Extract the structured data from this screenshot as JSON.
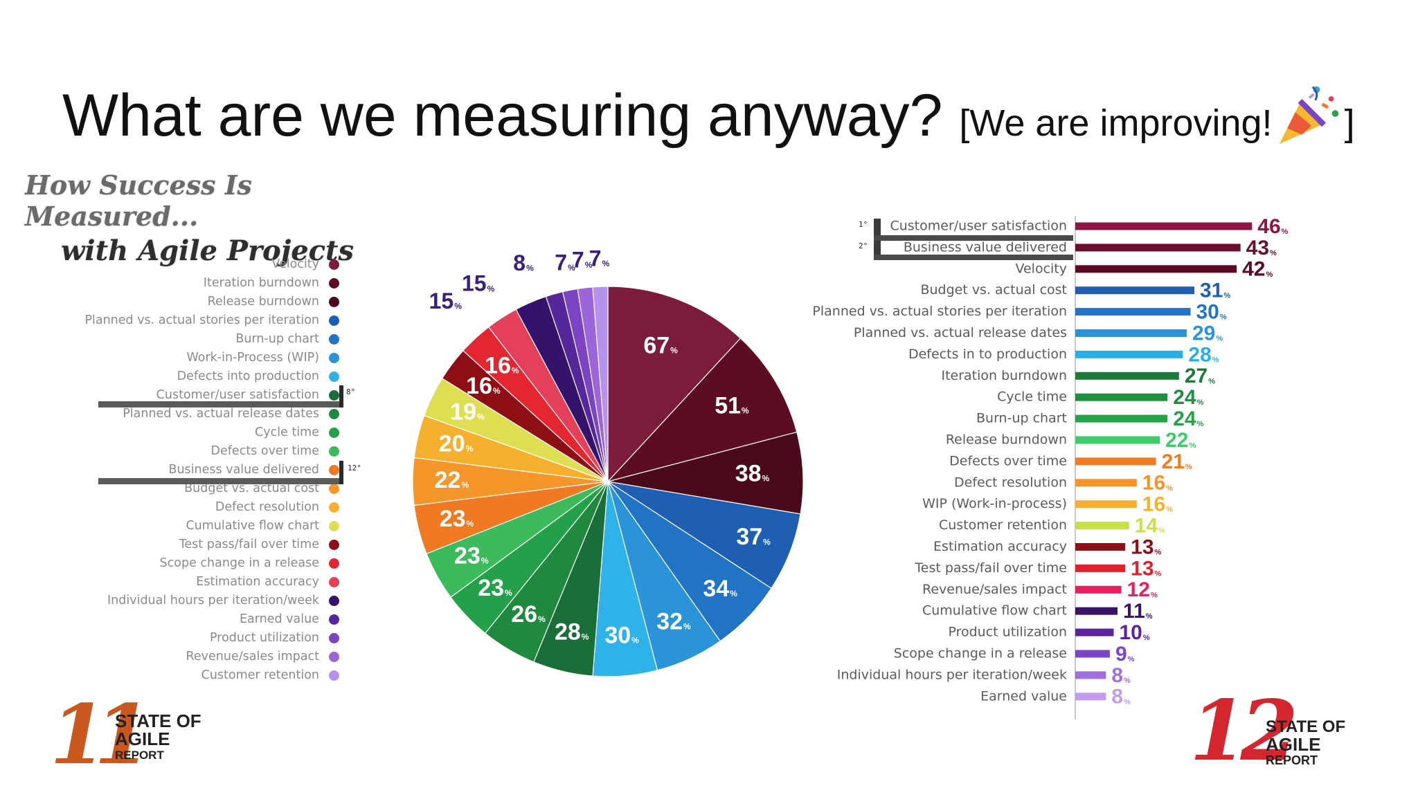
{
  "slide": {
    "title": "What are we measuring anyway?",
    "subtitle_open": "[We are improving!",
    "subtitle_close": "]",
    "emoji": "party-popper-icon"
  },
  "left_panel": {
    "title_line1": "How Success Is Measured...",
    "title_line2": "with Agile Projects",
    "annotation_1": "8°",
    "annotation_2": "12°"
  },
  "right_panel": {
    "rank_1": "1°",
    "rank_2": "2°"
  },
  "logos": {
    "left": {
      "number": "11",
      "line1": "STATE OF",
      "line2": "AGILE",
      "line3": "REPORT"
    },
    "right": {
      "number": "12",
      "line1": "STATE OF",
      "line2": "AGILE",
      "line3": "REPORT"
    }
  },
  "chart_data": [
    {
      "type": "pie",
      "title": "How Success Is Measured... with Agile Projects",
      "legend_placement": "left",
      "unit": "%",
      "slices": [
        {
          "label": "Velocity",
          "value": 67,
          "color": "#7b1c3a"
        },
        {
          "label": "Iteration burndown",
          "value": 51,
          "color": "#5c0d22"
        },
        {
          "label": "Release burndown",
          "value": 38,
          "color": "#4a0a1a"
        },
        {
          "label": "Planned vs. actual stories per iteration",
          "value": 37,
          "color": "#1f5fb3"
        },
        {
          "label": "Burn-up chart",
          "value": 34,
          "color": "#2173c4"
        },
        {
          "label": "Work-in-Process (WIP)",
          "value": 32,
          "color": "#2b94d8"
        },
        {
          "label": "Defects into production",
          "value": 30,
          "color": "#2fb2e8"
        },
        {
          "label": "Customer/user satisfaction",
          "value": 28,
          "color": "#1a6e38"
        },
        {
          "label": "Planned vs. actual release dates",
          "value": 26,
          "color": "#1f8a3d"
        },
        {
          "label": "Cycle time",
          "value": 23,
          "color": "#24a04a"
        },
        {
          "label": "Defects over time",
          "value": 23,
          "color": "#3dbb5c"
        },
        {
          "label": "Business value delivered",
          "value": 23,
          "color": "#f07a22"
        },
        {
          "label": "Budget vs. actual cost",
          "value": 22,
          "color": "#f5962a"
        },
        {
          "label": "Defect resolution",
          "value": 20,
          "color": "#f5b12e"
        },
        {
          "label": "Cumulative flow chart",
          "value": 19,
          "color": "#dede52"
        },
        {
          "label": "Test pass/fail over time",
          "value": 16,
          "color": "#8e0e15"
        },
        {
          "label": "Scope change in a release",
          "value": 16,
          "color": "#e3262f"
        },
        {
          "label": "Estimation accuracy",
          "value": 15,
          "color": "#e5405a"
        },
        {
          "label": "Individual hours per iteration/week",
          "value": 15,
          "color": "#35126b"
        },
        {
          "label": "Earned value",
          "value": 8,
          "color": "#56279a"
        },
        {
          "label": "Product utilization",
          "value": 7,
          "color": "#7a44c2"
        },
        {
          "label": "Revenue/sales impact",
          "value": 7,
          "color": "#9a66da"
        },
        {
          "label": "Customer retention",
          "value": 7,
          "color": "#b791ee"
        }
      ]
    },
    {
      "type": "bar",
      "orientation": "horizontal",
      "unit": "%",
      "categories": [
        "Customer/user satisfaction",
        "Business value delivered",
        "Velocity",
        "Budget vs. actual cost",
        "Planned vs. actual stories per iteration",
        "Planned vs. actual release dates",
        "Defects in to production",
        "Iteration burndown",
        "Cycle time",
        "Burn-up chart",
        "Release burndown",
        "Defects over time",
        "Defect resolution",
        "WIP (Work-in-process)",
        "Customer retention",
        "Estimation accuracy",
        "Test pass/fail over time",
        "Revenue/sales impact",
        "Cumulative flow chart",
        "Product utilization",
        "Scope change in a release",
        "Individual hours per iteration/week",
        "Earned value"
      ],
      "values": [
        46,
        43,
        42,
        31,
        30,
        29,
        28,
        27,
        24,
        24,
        22,
        21,
        16,
        16,
        14,
        13,
        13,
        12,
        11,
        10,
        9,
        8,
        8
      ],
      "colors": [
        "#8e1545",
        "#6a0d2e",
        "#5a0a24",
        "#1f5fb3",
        "#2373c8",
        "#2b94d8",
        "#28b0e6",
        "#1a7a3a",
        "#1f8f40",
        "#27a24b",
        "#3ecb6a",
        "#f27b21",
        "#f5932a",
        "#f5b12e",
        "#c7df4a",
        "#8e0e15",
        "#e0202b",
        "#e81f5e",
        "#3a136e",
        "#5b239f",
        "#7b46c4",
        "#a070e0",
        "#c29af2"
      ]
    }
  ]
}
